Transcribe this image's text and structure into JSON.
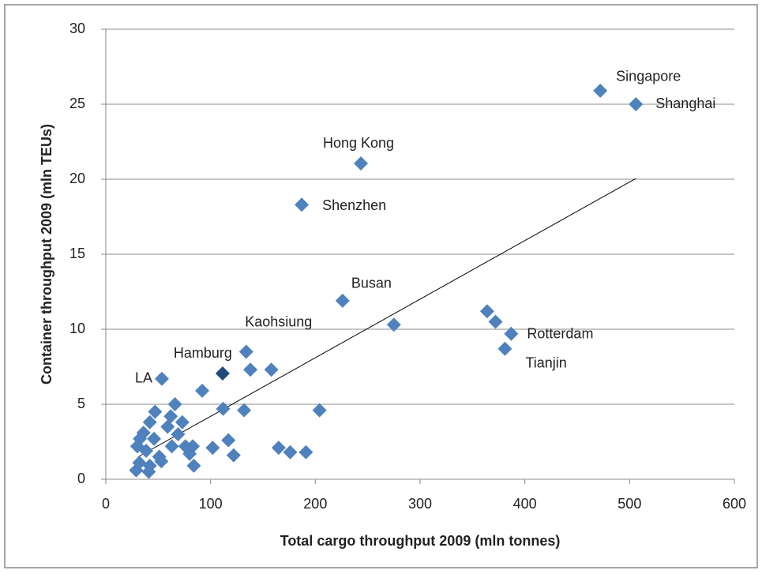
{
  "chart_data": {
    "type": "scatter",
    "x_label": "Total cargo throughput 2009 (mln tonnes)",
    "y_label": "Container throughput 2009 (mln TEUs)",
    "xlim": [
      0,
      600
    ],
    "xticks": [
      0,
      100,
      200,
      300,
      400,
      500,
      600
    ],
    "ylim": [
      0,
      30
    ],
    "yticks": [
      0,
      5,
      10,
      15,
      20,
      25,
      30
    ],
    "grid": true,
    "series": [
      {
        "color": "#4f81bd",
        "x": [
          472,
          506,
          243.5,
          187,
          226,
          387,
          381,
          134,
          53.5,
          364,
          372,
          275,
          138,
          158,
          92,
          112,
          132,
          204,
          66,
          47,
          42,
          73,
          62,
          59,
          69,
          36,
          32.5,
          46,
          30,
          38.5,
          63,
          76,
          83,
          102,
          117,
          165,
          176,
          191,
          122,
          80,
          51,
          53,
          32,
          42,
          84,
          29,
          41
        ],
        "y": [
          25.9,
          25.0,
          21.05,
          18.3,
          11.9,
          9.7,
          8.7,
          8.5,
          6.7,
          11.2,
          10.5,
          10.3,
          7.3,
          7.3,
          5.9,
          4.7,
          4.6,
          4.6,
          5.0,
          4.5,
          3.8,
          3.8,
          4.2,
          3.5,
          3.0,
          3.1,
          2.7,
          2.7,
          2.2,
          1.9,
          2.2,
          2.2,
          2.2,
          2.1,
          2.6,
          2.1,
          1.8,
          1.8,
          1.6,
          1.7,
          1.5,
          1.2,
          1.1,
          0.9,
          0.9,
          0.6,
          0.5
        ],
        "labels": [
          "Singapore",
          "Shanghai",
          "Hong Kong",
          "Shenzhen",
          "Busan",
          "Rotterdam",
          "Tianjin",
          "Kaohsiung",
          "LA"
        ]
      },
      {
        "color": "#1f4a7a",
        "x": [
          111.5
        ],
        "y": [
          7.05
        ],
        "labels": [
          "Hamburg"
        ]
      }
    ],
    "trendline": {
      "color": "#000000",
      "x": [
        31,
        506
      ],
      "y": [
        1.5,
        20.05
      ]
    }
  }
}
